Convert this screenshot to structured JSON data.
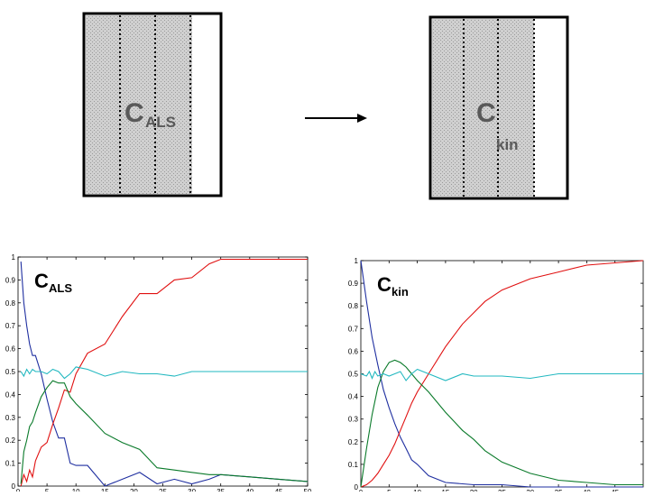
{
  "matrices": {
    "left": {
      "label": "C",
      "subscript": "ALS"
    },
    "right": {
      "label": "C",
      "subscript": "kin"
    }
  },
  "colors": {
    "blue": "#1f2fa0",
    "red": "#e01010",
    "green": "#0a7a2a",
    "cyan": "#22b8c0",
    "matrix_fill": "#d9d9d9"
  },
  "chart_data": [
    {
      "type": "line",
      "title_main": "C",
      "title_sub": "ALS",
      "xlim": [
        0,
        50
      ],
      "ylim": [
        0,
        1
      ],
      "xticks": [
        0,
        5,
        10,
        15,
        20,
        25,
        30,
        35,
        40,
        45,
        50
      ],
      "yticks": [
        0,
        0.1,
        0.2,
        0.3,
        0.4,
        0.5,
        0.6,
        0.7,
        0.8,
        0.9,
        1
      ],
      "x_tick_labels": [
        "0",
        "5",
        "10",
        "15",
        "20",
        "25",
        "30",
        "35",
        "40",
        "45",
        "50"
      ],
      "y_tick_labels": [
        "0",
        "0.1",
        "0.2",
        "0.3",
        "0.4",
        "0.5",
        "0.6",
        "0.7",
        "0.8",
        "0.9",
        "1"
      ],
      "series": [
        {
          "color": "blue",
          "x": [
            0.5,
            1,
            1.5,
            2,
            2.5,
            3,
            4,
            5,
            6,
            7,
            8,
            9,
            10,
            12,
            15,
            18,
            21,
            24,
            27,
            30,
            33,
            35,
            40,
            45,
            50
          ],
          "y": [
            0.98,
            0.8,
            0.7,
            0.62,
            0.57,
            0.57,
            0.49,
            0.38,
            0.28,
            0.21,
            0.21,
            0.1,
            0.09,
            0.09,
            0.0,
            0.03,
            0.06,
            0.01,
            0.03,
            0.01,
            0.03,
            0.05,
            0.04,
            0.03,
            0.02
          ]
        },
        {
          "color": "red",
          "x": [
            0.5,
            1,
            1.5,
            2,
            2.5,
            3,
            4,
            5,
            6,
            7,
            8,
            9,
            10,
            12,
            15,
            18,
            21,
            24,
            27,
            30,
            33,
            35,
            40,
            45,
            50
          ],
          "y": [
            0.0,
            0.05,
            0.02,
            0.07,
            0.04,
            0.11,
            0.17,
            0.19,
            0.27,
            0.34,
            0.42,
            0.41,
            0.49,
            0.58,
            0.62,
            0.74,
            0.84,
            0.84,
            0.9,
            0.91,
            0.97,
            0.99,
            0.99,
            0.99,
            0.99
          ]
        },
        {
          "color": "green",
          "x": [
            0.5,
            1,
            1.5,
            2,
            2.5,
            3,
            4,
            5,
            6,
            7,
            8,
            9,
            10,
            12,
            15,
            18,
            21,
            24,
            27,
            30,
            33,
            35,
            40,
            45,
            50
          ],
          "y": [
            0.01,
            0.15,
            0.2,
            0.26,
            0.28,
            0.32,
            0.39,
            0.43,
            0.46,
            0.45,
            0.45,
            0.39,
            0.36,
            0.31,
            0.23,
            0.19,
            0.16,
            0.08,
            0.07,
            0.06,
            0.05,
            0.05,
            0.04,
            0.03,
            0.02
          ]
        },
        {
          "color": "cyan",
          "x": [
            0.5,
            1,
            1.5,
            2,
            2.5,
            3,
            4,
            5,
            6,
            7,
            8,
            9,
            10,
            12,
            15,
            18,
            21,
            24,
            27,
            30,
            33,
            35,
            40,
            45,
            50
          ],
          "y": [
            0.5,
            0.48,
            0.51,
            0.49,
            0.51,
            0.5,
            0.5,
            0.49,
            0.51,
            0.5,
            0.47,
            0.49,
            0.52,
            0.51,
            0.48,
            0.5,
            0.49,
            0.49,
            0.48,
            0.5,
            0.5,
            0.5,
            0.5,
            0.5,
            0.5
          ]
        }
      ]
    },
    {
      "type": "line",
      "title_main": "C",
      "title_sub": "kin",
      "xlim": [
        0,
        50
      ],
      "ylim": [
        0,
        1
      ],
      "xticks": [
        0,
        5,
        10,
        15,
        20,
        25,
        30,
        35,
        40,
        45
      ],
      "yticks": [
        0,
        0.1,
        0.2,
        0.3,
        0.4,
        0.5,
        0.6,
        0.7,
        0.8,
        0.9,
        1
      ],
      "x_tick_labels": [
        "0",
        "5",
        "10",
        "15",
        "20",
        "25",
        "30",
        "35",
        "40",
        "45"
      ],
      "y_tick_labels": [
        "0",
        "0.1",
        "0.2",
        "0.3",
        "0.4",
        "0.5",
        "0.6",
        "0.7",
        "0.8",
        "0.9",
        "1"
      ],
      "series": [
        {
          "color": "blue",
          "x": [
            0,
            1,
            2,
            3,
            4,
            5,
            6,
            7,
            8,
            9,
            10,
            12,
            15,
            20,
            25,
            30,
            35,
            40,
            45,
            50
          ],
          "y": [
            1.0,
            0.82,
            0.66,
            0.54,
            0.43,
            0.35,
            0.28,
            0.22,
            0.17,
            0.12,
            0.1,
            0.05,
            0.02,
            0.01,
            0.01,
            0.0,
            0.0,
            0.0,
            0.0,
            0.0
          ]
        },
        {
          "color": "red",
          "x": [
            0,
            1,
            2,
            3,
            4,
            5,
            6,
            7,
            8,
            9,
            10,
            12,
            15,
            18,
            20,
            22,
            25,
            28,
            30,
            35,
            40,
            45,
            50
          ],
          "y": [
            0.0,
            0.01,
            0.03,
            0.06,
            0.1,
            0.14,
            0.19,
            0.25,
            0.31,
            0.37,
            0.42,
            0.5,
            0.62,
            0.72,
            0.77,
            0.82,
            0.87,
            0.9,
            0.92,
            0.95,
            0.98,
            0.99,
            1.0
          ]
        },
        {
          "color": "green",
          "x": [
            0,
            1,
            2,
            3,
            4,
            5,
            6,
            7,
            8,
            9,
            10,
            12,
            15,
            18,
            20,
            22,
            25,
            30,
            35,
            40,
            45,
            50
          ],
          "y": [
            0.0,
            0.17,
            0.32,
            0.44,
            0.51,
            0.55,
            0.56,
            0.55,
            0.53,
            0.5,
            0.47,
            0.42,
            0.33,
            0.25,
            0.21,
            0.16,
            0.11,
            0.06,
            0.03,
            0.02,
            0.01,
            0.01
          ]
        },
        {
          "color": "cyan",
          "x": [
            0,
            1,
            1.5,
            2,
            2.5,
            3,
            4,
            5,
            6,
            7,
            8,
            9,
            10,
            12,
            15,
            18,
            20,
            25,
            30,
            35,
            40,
            45,
            50
          ],
          "y": [
            0.5,
            0.49,
            0.51,
            0.48,
            0.51,
            0.49,
            0.5,
            0.49,
            0.5,
            0.51,
            0.47,
            0.5,
            0.52,
            0.5,
            0.47,
            0.5,
            0.49,
            0.49,
            0.48,
            0.5,
            0.5,
            0.5,
            0.5
          ]
        }
      ]
    }
  ]
}
